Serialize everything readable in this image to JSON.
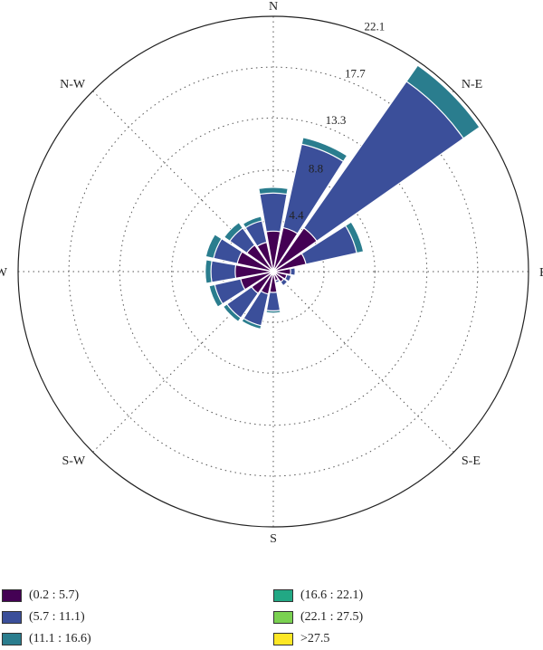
{
  "chart_data": {
    "type": "windrose",
    "title": "",
    "directions": [
      "N",
      "N-E",
      "E",
      "S-E",
      "S",
      "S-W",
      "W",
      "N-W"
    ],
    "radial_ticks": [
      "4.4",
      "8.8",
      "13.3",
      "17.7",
      "22.1"
    ],
    "radial_tick_values": [
      4.4,
      8.8,
      13.3,
      17.7,
      22.1
    ],
    "rmax": 22.1,
    "bins": [
      {
        "name": "(0.2 : 5.7)",
        "color": "#440154"
      },
      {
        "name": "(5.7 : 11.1)",
        "color": "#3b4f9a"
      },
      {
        "name": "(11.1 : 16.6)",
        "color": "#2a7d8e"
      },
      {
        "name": "(16.6 : 22.1)",
        "color": "#22a884"
      },
      {
        "name": "(22.1 : 27.5)",
        "color": "#7ad151"
      },
      {
        "name": ">27.5",
        "color": "#fde725"
      }
    ],
    "sector_width_deg": 20,
    "sector_centers_deg": [
      0,
      22.5,
      45,
      67.5,
      90,
      112.5,
      135,
      157.5,
      180,
      202.5,
      225,
      247.5,
      270,
      292.5,
      315,
      337.5
    ],
    "cumulative_values": [
      [
        3.5,
        6.8,
        7.3,
        7.3,
        7.3,
        7.3
      ],
      [
        3.9,
        11.3,
        11.9,
        11.9,
        11.9,
        11.9
      ],
      [
        4.6,
        20.1,
        21.8,
        21.8,
        21.8,
        21.8
      ],
      [
        2.9,
        7.4,
        8.0,
        8.0,
        8.0,
        8.0
      ],
      [
        1.5,
        1.9,
        1.9,
        1.9,
        1.9,
        1.9
      ],
      [
        1.2,
        1.6,
        1.6,
        1.6,
        1.6,
        1.6
      ],
      [
        1.1,
        1.5,
        1.5,
        1.5,
        1.5,
        1.5
      ],
      [
        0.8,
        1.0,
        1.0,
        1.0,
        1.0,
        1.0
      ],
      [
        1.8,
        3.4,
        3.6,
        3.6,
        3.6,
        3.6
      ],
      [
        2.0,
        4.8,
        5.1,
        5.1,
        5.1,
        5.1
      ],
      [
        2.3,
        4.9,
        5.3,
        5.3,
        5.3,
        5.3
      ],
      [
        2.9,
        5.2,
        5.7,
        5.7,
        5.7,
        5.7
      ],
      [
        3.3,
        5.4,
        5.9,
        5.9,
        5.9,
        5.9
      ],
      [
        3.2,
        5.3,
        6.0,
        6.0,
        6.0,
        6.0
      ],
      [
        2.8,
        4.6,
        5.2,
        5.2,
        5.2,
        5.2
      ],
      [
        2.6,
        4.5,
        4.9,
        4.9,
        4.9,
        4.9
      ]
    ]
  }
}
